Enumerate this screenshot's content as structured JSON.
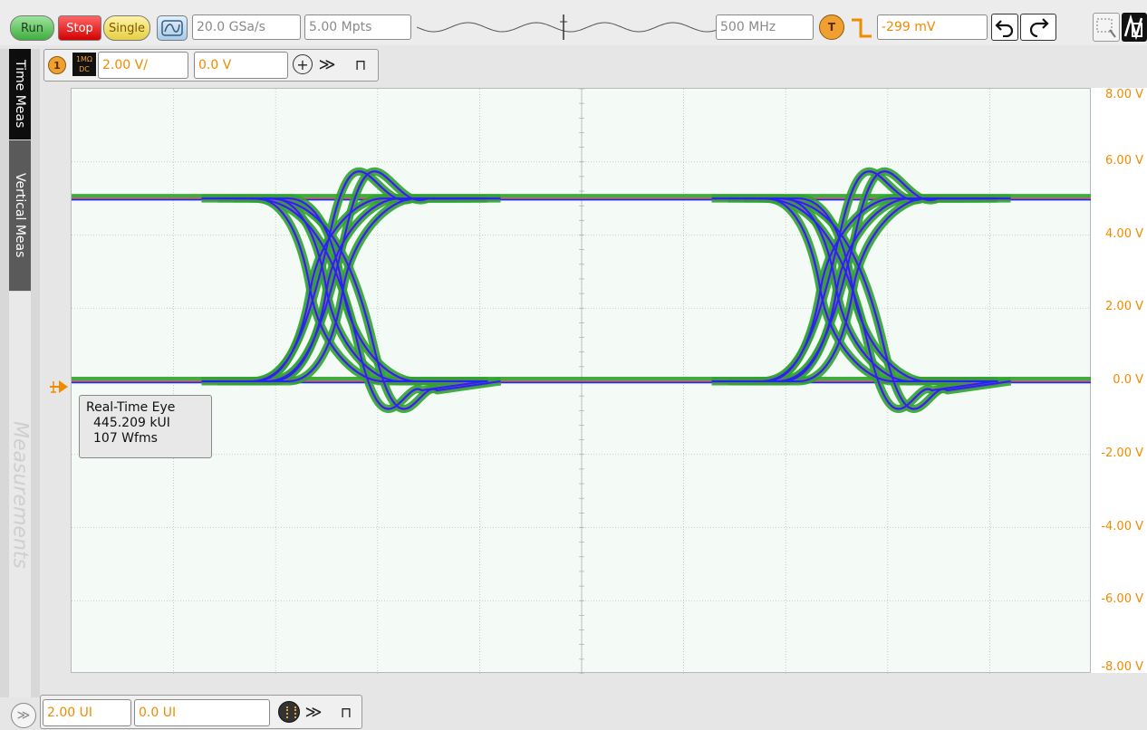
{
  "toolbar": {
    "run_label": "Run",
    "stop_label": "Stop",
    "single_label": "Single",
    "sample_rate": "20.0 GSa/s",
    "memory_depth": "5.00 Mpts",
    "bandwidth": "500 MHz",
    "trigger_badge": "T",
    "trigger_level": "-299 mV",
    "icons": [
      "auto-scale-icon",
      "trigger-edge-icon",
      "undo-icon",
      "redo-icon",
      "zoom-icon",
      "waveform-mode-icon"
    ]
  },
  "left_tabs": {
    "time_meas": "Time Meas",
    "vertical_meas": "Vertical Meas",
    "measurements": "Measurements"
  },
  "channel": {
    "number": "1",
    "coupling_line1": "1MΩ",
    "coupling_line2": "DC",
    "scale": "2.00 V/",
    "offset": "0.0 V",
    "add_symbol": "+",
    "more_symbol": "≫",
    "pin_symbol": "⊓"
  },
  "y_axis": {
    "labels": [
      "8.00 V",
      "6.00 V",
      "4.00 V",
      "2.00 V",
      "0.0 V",
      "-2.00 V",
      "-4.00 V",
      "-6.00 V",
      "-8.00 V"
    ]
  },
  "measurement": {
    "title": "Real-Time Eye",
    "ui_count": "445.209 kUI",
    "waveforms": "107 Wfms"
  },
  "horizontal": {
    "scale": "2.00 UI",
    "position": "0.0 UI",
    "more_symbol": "≫",
    "pin_symbol": "⊓",
    "expand_symbol": "≫"
  },
  "colors": {
    "accent_orange": "#f08a00",
    "run_green": "#3fae3f",
    "stop_red": "#d40000",
    "single_yellow": "#e6cf45",
    "plot_bg": "#f4fbf6",
    "eye_green": "#2aa52a",
    "eye_blue": "#1c2be6",
    "eye_purple": "#b044c8"
  },
  "chart_data": {
    "type": "line",
    "title": "",
    "xlabel": "",
    "ylabel": "",
    "x_unit": "UI",
    "x_span_ui": 2.0,
    "ylim": [
      -8,
      8
    ],
    "y_unit": "V",
    "y_tick_step": 2,
    "levels": {
      "high_v": 5.0,
      "low_v": 0.0
    },
    "crossing_positions_ui": [
      0.5,
      1.5
    ],
    "grid": true
  }
}
